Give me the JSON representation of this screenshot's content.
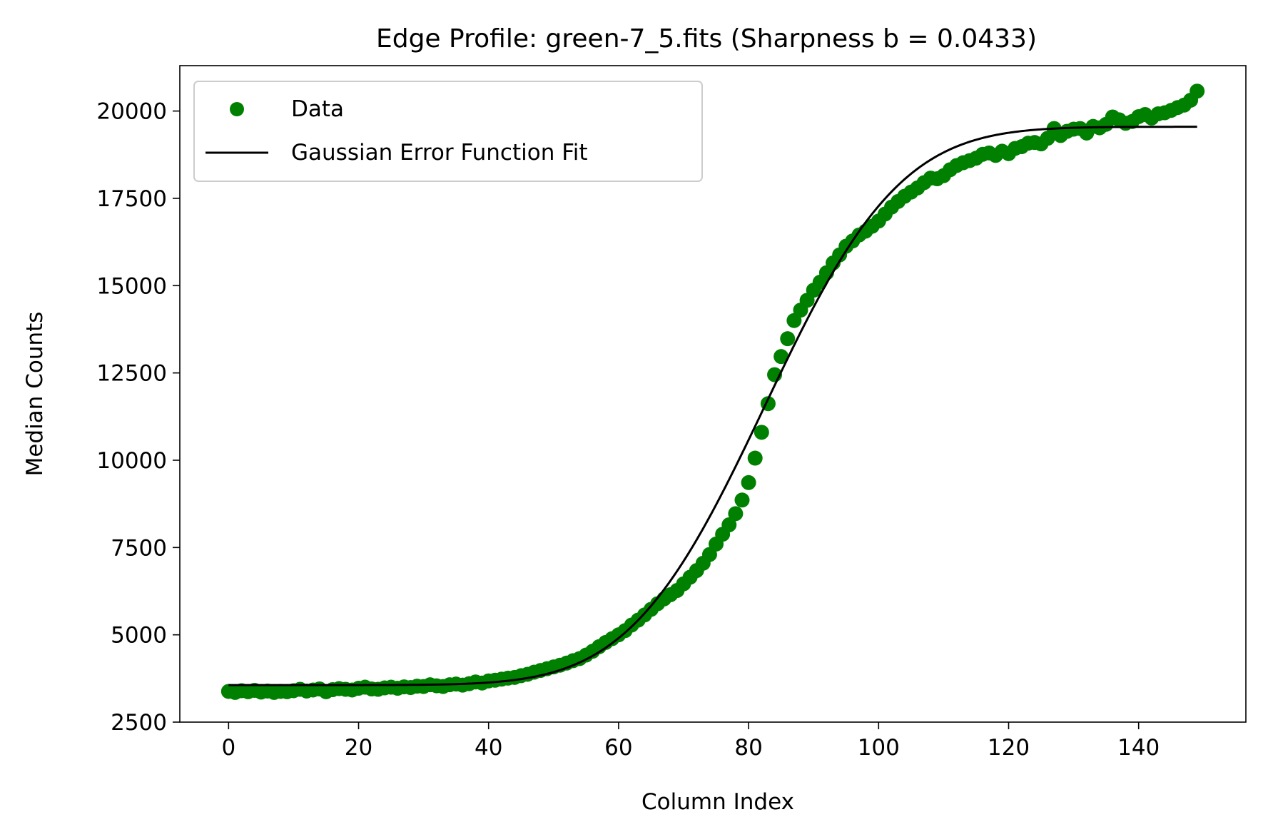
{
  "chart_data": {
    "type": "scatter",
    "title": "Edge Profile: green-7_5.fits (Sharpness b = 0.0433)",
    "xlabel": "Column Index",
    "ylabel": "Median Counts",
    "xlim": [
      -7.5,
      156.5
    ],
    "ylim": [
      2500,
      21300
    ],
    "xticks": [
      0,
      20,
      40,
      60,
      80,
      100,
      120,
      140
    ],
    "yticks": [
      2500,
      5000,
      7500,
      10000,
      12500,
      15000,
      17500,
      20000
    ],
    "grid": false,
    "legend": {
      "placement": "top-left",
      "entries": [
        "Data",
        "Gaussian Error Function Fit"
      ]
    },
    "colors": {
      "data": "#008000",
      "fit": "#000000"
    },
    "series": [
      {
        "name": "Data",
        "kind": "scatter",
        "x": [
          0,
          1,
          2,
          3,
          4,
          5,
          6,
          7,
          8,
          9,
          10,
          11,
          12,
          13,
          14,
          15,
          16,
          17,
          18,
          19,
          20,
          21,
          22,
          23,
          24,
          25,
          26,
          27,
          28,
          29,
          30,
          31,
          32,
          33,
          34,
          35,
          36,
          37,
          38,
          39,
          40,
          41,
          42,
          43,
          44,
          45,
          46,
          47,
          48,
          49,
          50,
          51,
          52,
          53,
          54,
          55,
          56,
          57,
          58,
          59,
          60,
          61,
          62,
          63,
          64,
          65,
          66,
          67,
          68,
          69,
          70,
          71,
          72,
          73,
          74,
          75,
          76,
          77,
          78,
          79,
          80,
          81,
          82,
          83,
          84,
          85,
          86,
          87,
          88,
          89,
          90,
          91,
          92,
          93,
          94,
          95,
          96,
          97,
          98,
          99,
          100,
          101,
          102,
          103,
          104,
          105,
          106,
          107,
          108,
          109,
          110,
          111,
          112,
          113,
          114,
          115,
          116,
          117,
          118,
          119,
          120,
          121,
          122,
          123,
          124,
          125,
          126,
          127,
          128,
          129,
          130,
          131,
          132,
          133,
          134,
          135,
          136,
          137,
          138,
          139,
          140,
          141,
          142,
          143,
          144,
          145,
          146,
          147,
          148,
          149
        ],
        "y": [
          3380,
          3350,
          3400,
          3370,
          3410,
          3360,
          3390,
          3350,
          3380,
          3370,
          3400,
          3440,
          3390,
          3420,
          3450,
          3370,
          3430,
          3460,
          3440,
          3420,
          3470,
          3500,
          3450,
          3440,
          3480,
          3500,
          3470,
          3510,
          3490,
          3530,
          3520,
          3570,
          3540,
          3520,
          3570,
          3590,
          3560,
          3600,
          3650,
          3620,
          3680,
          3700,
          3730,
          3760,
          3780,
          3830,
          3870,
          3930,
          3980,
          4030,
          4080,
          4130,
          4190,
          4260,
          4320,
          4420,
          4530,
          4660,
          4780,
          4890,
          5000,
          5120,
          5280,
          5420,
          5570,
          5730,
          5890,
          6030,
          6150,
          6270,
          6460,
          6650,
          6840,
          7050,
          7300,
          7600,
          7880,
          8150,
          8470,
          8860,
          9360,
          10060,
          10800,
          11620,
          12450,
          12970,
          13480,
          14000,
          14300,
          14580,
          14870,
          15100,
          15370,
          15650,
          15880,
          16130,
          16280,
          16450,
          16560,
          16700,
          16850,
          17050,
          17250,
          17410,
          17560,
          17680,
          17800,
          17950,
          18080,
          18060,
          18150,
          18320,
          18440,
          18520,
          18580,
          18650,
          18760,
          18800,
          18730,
          18850,
          18780,
          18930,
          18980,
          19080,
          19100,
          19060,
          19220,
          19500,
          19300,
          19420,
          19480,
          19500,
          19370,
          19560,
          19520,
          19620,
          19830,
          19750,
          19650,
          19700,
          19840,
          19900,
          19800,
          19920,
          19950,
          20020,
          20100,
          20170,
          20310,
          20570
        ]
      },
      {
        "name": "Gaussian Error Function Fit",
        "kind": "line",
        "model": "erf",
        "params": {
          "baseline": 3560,
          "amplitude": 15990,
          "center": 82.5,
          "b": 0.0433
        },
        "x_range": [
          0,
          149
        ]
      }
    ]
  }
}
